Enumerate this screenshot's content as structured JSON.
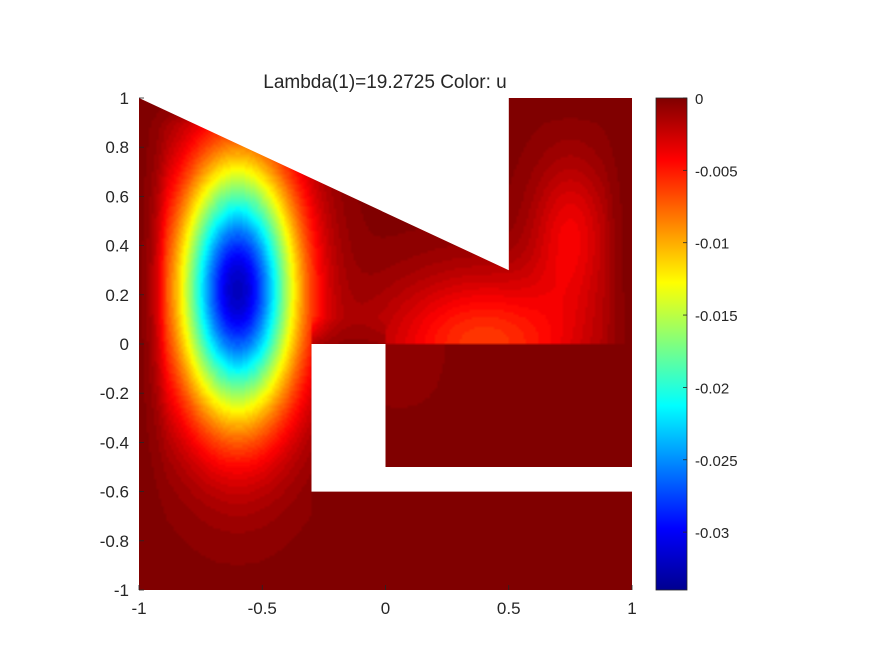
{
  "chart_data": {
    "type": "heatmap",
    "title": "Lambda(1)=19.2725   Color: u",
    "xlabel": "",
    "ylabel": "",
    "xlim": [
      -1,
      1
    ],
    "ylim": [
      -1,
      1
    ],
    "x_ticks": [
      -1,
      -0.5,
      0,
      0.5,
      1
    ],
    "x_tick_labels": [
      "-1",
      "-0.5",
      "0",
      "0.5",
      "1"
    ],
    "y_ticks": [
      1,
      0.8,
      0.6,
      0.4,
      0.2,
      0,
      -0.2,
      -0.4,
      -0.6,
      -0.8,
      -1
    ],
    "y_tick_labels": [
      "1",
      "0.8",
      "0.6",
      "0.4",
      "0.2",
      "0",
      "-0.2",
      "-0.4",
      "-0.6",
      "-0.8",
      "-1"
    ],
    "grid": false,
    "colormap": "jet",
    "colorbar": {
      "placement": "right",
      "clim": [
        -0.034,
        0
      ],
      "ticks": [
        0,
        -0.005,
        -0.01,
        -0.015,
        -0.02,
        -0.025,
        -0.03
      ],
      "tick_labels": [
        "0",
        "-0.005",
        "-0.01",
        "-0.015",
        "-0.02",
        "-0.025",
        "-0.03"
      ]
    },
    "domain_polygon": [
      [
        -1,
        1
      ],
      [
        0.5,
        0.3
      ],
      [
        0.5,
        1
      ],
      [
        1,
        1
      ],
      [
        1,
        -0.5
      ],
      [
        0,
        -0.5
      ],
      [
        0,
        0
      ],
      [
        -0.3,
        0
      ],
      [
        -0.3,
        -0.6
      ],
      [
        1,
        -0.6
      ],
      [
        1,
        -1
      ],
      [
        -1,
        -1
      ]
    ],
    "field_extrema": [
      {
        "x": -0.6,
        "y": 0.22,
        "value": -0.034
      },
      {
        "x": 0.4,
        "y": 0.0,
        "value": -0.0065
      },
      {
        "x": 0.75,
        "y": 0.45,
        "value": -0.004
      }
    ]
  }
}
